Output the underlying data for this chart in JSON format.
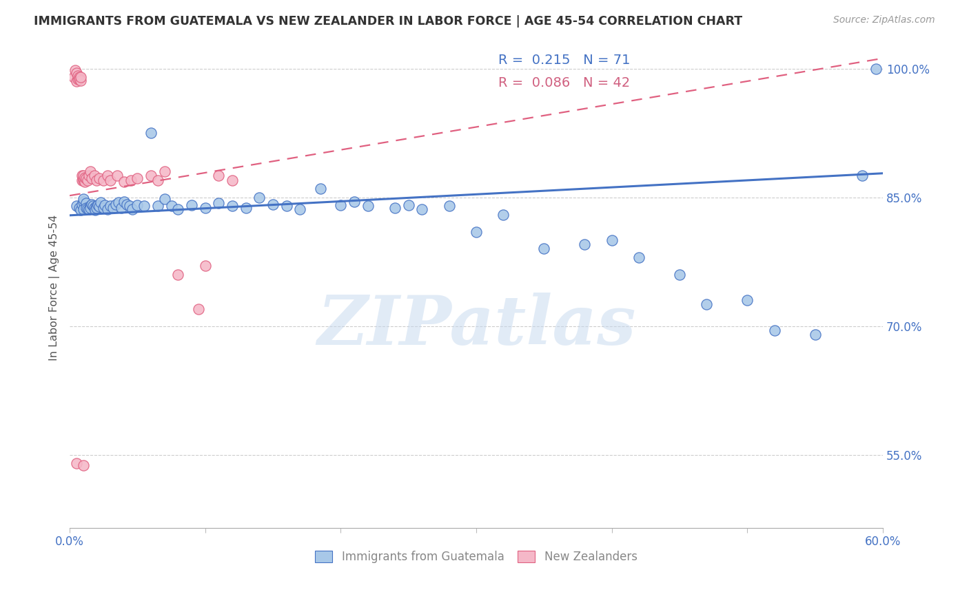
{
  "title": "IMMIGRANTS FROM GUATEMALA VS NEW ZEALANDER IN LABOR FORCE | AGE 45-54 CORRELATION CHART",
  "source": "Source: ZipAtlas.com",
  "ylabel": "In Labor Force | Age 45-54",
  "xlim": [
    0.0,
    0.6
  ],
  "ylim": [
    0.465,
    1.025
  ],
  "yticks_right": [
    0.55,
    0.7,
    0.85,
    1.0
  ],
  "ytick_right_labels": [
    "55.0%",
    "70.0%",
    "85.0%",
    "100.0%"
  ],
  "R_blue": 0.215,
  "N_blue": 71,
  "R_pink": 0.086,
  "N_pink": 42,
  "blue_fill": "#a8c8e8",
  "pink_fill": "#f5b8c8",
  "blue_edge": "#4472c4",
  "pink_edge": "#e06080",
  "blue_line": "#4472c4",
  "pink_line": "#e06080",
  "watermark_text": "ZIPatlas",
  "blue_x": [
    0.005,
    0.007,
    0.008,
    0.009,
    0.01,
    0.01,
    0.01,
    0.012,
    0.012,
    0.013,
    0.014,
    0.015,
    0.015,
    0.016,
    0.017,
    0.018,
    0.019,
    0.02,
    0.02,
    0.021,
    0.022,
    0.023,
    0.025,
    0.026,
    0.028,
    0.03,
    0.032,
    0.034,
    0.036,
    0.038,
    0.04,
    0.042,
    0.044,
    0.046,
    0.05,
    0.055,
    0.06,
    0.065,
    0.07,
    0.075,
    0.08,
    0.09,
    0.1,
    0.11,
    0.12,
    0.13,
    0.14,
    0.15,
    0.16,
    0.17,
    0.185,
    0.2,
    0.21,
    0.22,
    0.24,
    0.25,
    0.26,
    0.28,
    0.3,
    0.32,
    0.35,
    0.38,
    0.4,
    0.42,
    0.45,
    0.47,
    0.5,
    0.52,
    0.55,
    0.585,
    0.595
  ],
  "blue_y": [
    0.84,
    0.838,
    0.835,
    0.842,
    0.845,
    0.848,
    0.836,
    0.843,
    0.838,
    0.837,
    0.836,
    0.84,
    0.838,
    0.842,
    0.84,
    0.838,
    0.835,
    0.84,
    0.838,
    0.841,
    0.839,
    0.844,
    0.838,
    0.841,
    0.836,
    0.84,
    0.838,
    0.842,
    0.844,
    0.838,
    0.845,
    0.842,
    0.84,
    0.836,
    0.841,
    0.84,
    0.925,
    0.84,
    0.848,
    0.84,
    0.836,
    0.841,
    0.838,
    0.843,
    0.84,
    0.838,
    0.85,
    0.842,
    0.84,
    0.836,
    0.86,
    0.841,
    0.845,
    0.84,
    0.838,
    0.841,
    0.836,
    0.84,
    0.81,
    0.83,
    0.79,
    0.795,
    0.8,
    0.78,
    0.76,
    0.725,
    0.73,
    0.695,
    0.69,
    0.875,
    1.0
  ],
  "pink_x": [
    0.003,
    0.004,
    0.005,
    0.005,
    0.006,
    0.006,
    0.007,
    0.007,
    0.008,
    0.008,
    0.009,
    0.009,
    0.01,
    0.01,
    0.01,
    0.011,
    0.011,
    0.012,
    0.013,
    0.014,
    0.015,
    0.016,
    0.018,
    0.02,
    0.022,
    0.025,
    0.028,
    0.03,
    0.035,
    0.04,
    0.045,
    0.05,
    0.06,
    0.065,
    0.07,
    0.08,
    0.095,
    0.1,
    0.11,
    0.12,
    0.005,
    0.01
  ],
  "pink_y": [
    0.99,
    0.998,
    0.995,
    0.985,
    0.988,
    0.992,
    0.99,
    0.988,
    0.986,
    0.99,
    0.87,
    0.875,
    0.87,
    0.872,
    0.875,
    0.868,
    0.873,
    0.872,
    0.87,
    0.875,
    0.88,
    0.872,
    0.875,
    0.87,
    0.872,
    0.87,
    0.875,
    0.87,
    0.875,
    0.868,
    0.87,
    0.872,
    0.875,
    0.87,
    0.88,
    0.76,
    0.72,
    0.77,
    0.875,
    0.87,
    0.54,
    0.538
  ],
  "blue_trend_x0": 0.0,
  "blue_trend_x1": 0.6,
  "blue_trend_y0": 0.829,
  "blue_trend_y1": 0.878,
  "pink_trend_x0": 0.0,
  "pink_trend_x1": 0.6,
  "pink_trend_y0": 0.852,
  "pink_trend_y1": 1.012
}
